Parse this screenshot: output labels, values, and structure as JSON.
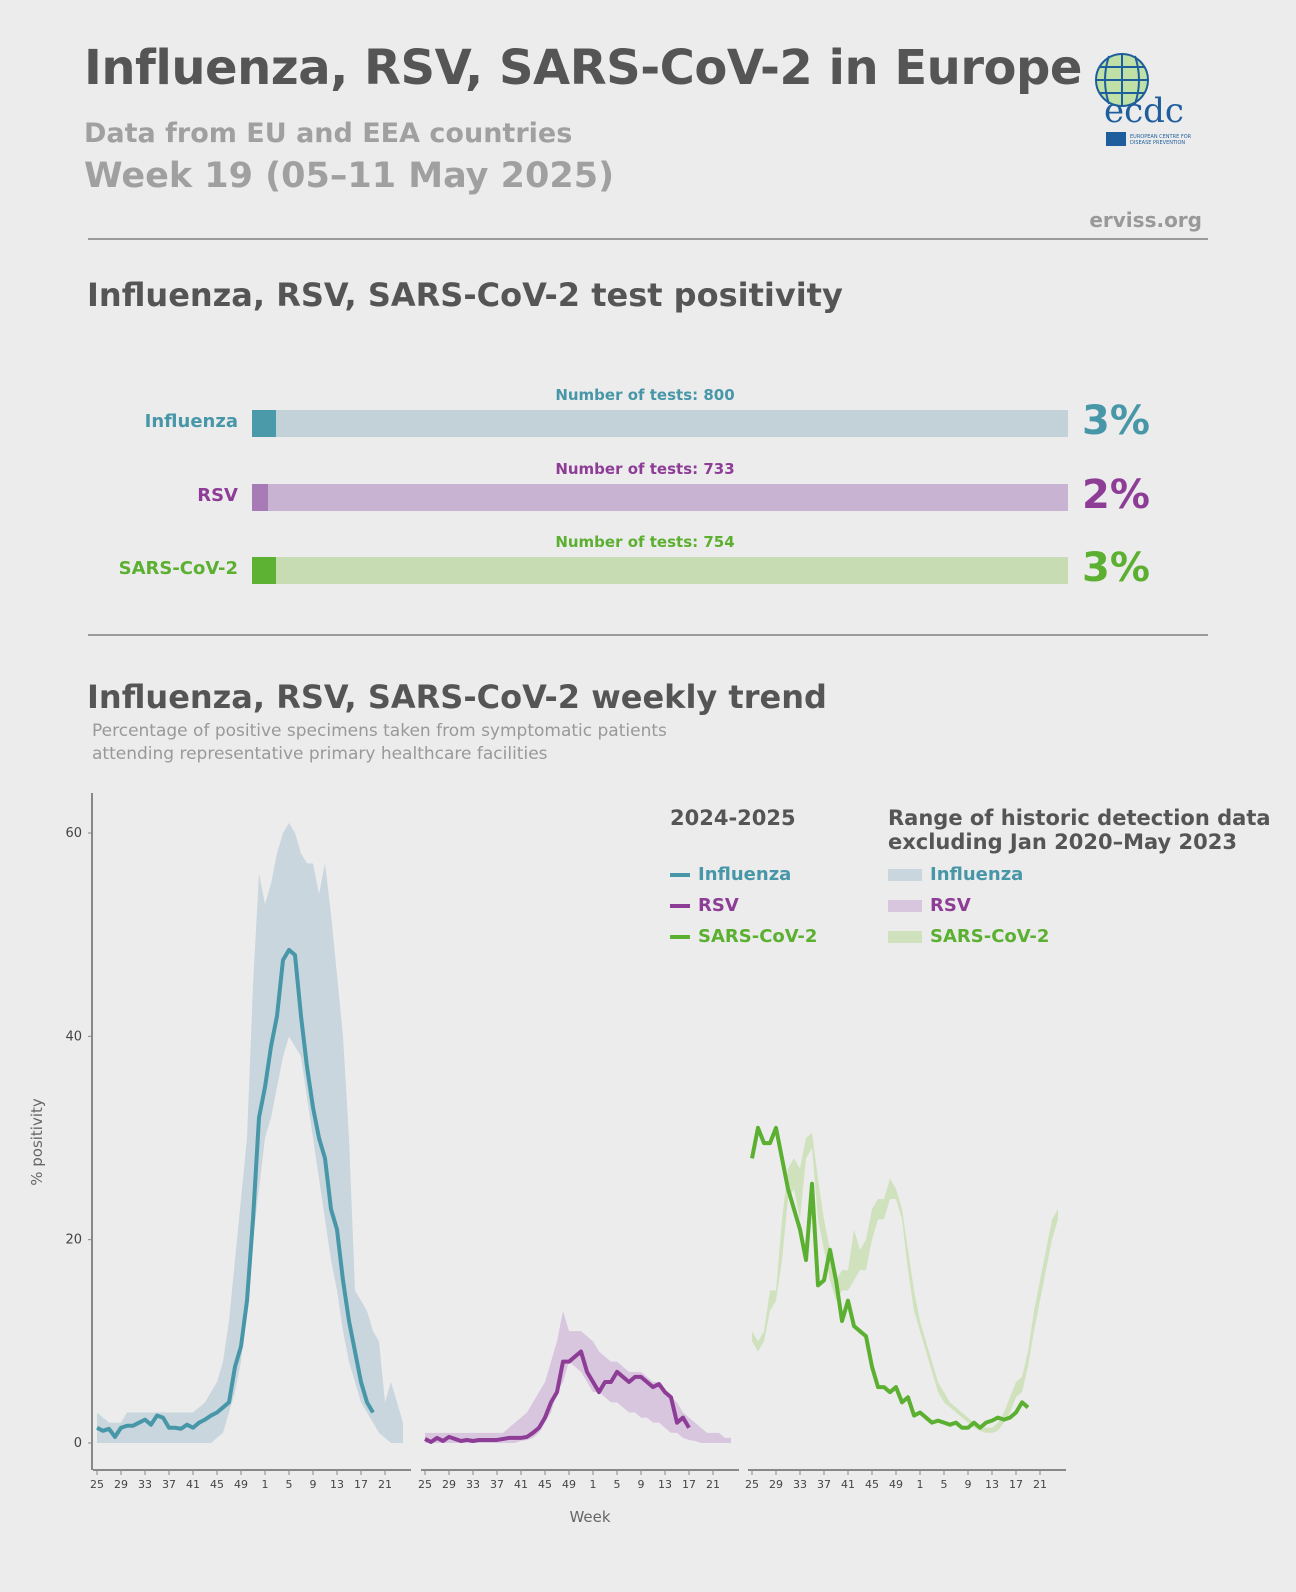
{
  "header": {
    "title": "Influenza, RSV, SARS-CoV-2 in Europe",
    "subtitle": "Data from EU and EEA countries",
    "week": "Week 19 (05–11 May 2025)",
    "site": "erviss.org",
    "logo_text": "ecdc",
    "logo_caption": "EUROPEAN CENTRE FOR DISEASE PREVENTION AND CONTROL"
  },
  "colors": {
    "influenza": "#4797a8",
    "rsv": "#8e3d97",
    "sars": "#5cb031",
    "influenza_band": "#c9d6de",
    "rsv_band": "#d8c6df",
    "sars_band": "#cfe2bd"
  },
  "positivity": {
    "title": "Influenza, RSV, SARS-CoV-2 test positivity",
    "rows": [
      {
        "label": "Influenza",
        "tests": "Number of tests: 800",
        "percent_label": "3%",
        "percent": 3
      },
      {
        "label": "RSV",
        "tests": "Number of tests: 733",
        "percent_label": "2%",
        "percent": 2
      },
      {
        "label": "SARS-CoV-2",
        "tests": "Number of tests: 754",
        "percent_label": "3%",
        "percent": 3
      }
    ]
  },
  "trend": {
    "title": "Influenza, RSV, SARS-CoV-2 weekly trend",
    "subtitle_1": "Percentage of positive specimens taken from symptomatic patients",
    "subtitle_2": "attending representative primary healthcare facilities"
  },
  "legend": {
    "season_title": "2024-2025",
    "range_title_1": "Range of historic detection data",
    "range_title_2": "excluding Jan 2020–May 2023",
    "items": [
      "Influenza",
      "RSV",
      "SARS-CoV-2"
    ]
  },
  "chart_data": {
    "type": "line",
    "xlabel": "Week",
    "ylabel": "% positivity",
    "ylim": [
      0,
      64
    ],
    "yticks": [
      0,
      20,
      40,
      60
    ],
    "weeks": [
      25,
      26,
      27,
      28,
      29,
      30,
      31,
      32,
      33,
      34,
      35,
      36,
      37,
      38,
      39,
      40,
      41,
      42,
      43,
      44,
      45,
      46,
      47,
      48,
      49,
      50,
      51,
      52,
      1,
      2,
      3,
      4,
      5,
      6,
      7,
      8,
      9,
      10,
      11,
      12,
      13,
      14,
      15,
      16,
      17,
      18,
      19,
      20,
      21,
      22,
      23,
      24
    ],
    "xtick_labels": [
      "25",
      "29",
      "33",
      "37",
      "41",
      "45",
      "49",
      "1",
      "5",
      "9",
      "13",
      "17",
      "21"
    ],
    "panels": [
      {
        "name": "Influenza",
        "line": [
          1.5,
          1.2,
          1.4,
          0.6,
          1.5,
          1.7,
          1.7,
          2.0,
          2.3,
          1.8,
          2.7,
          2.5,
          1.5,
          1.5,
          1.4,
          1.8,
          1.5,
          2.0,
          2.3,
          2.7,
          3.0,
          3.5,
          4.0,
          7.5,
          9.5,
          14,
          22,
          32,
          35,
          39,
          42,
          47.5,
          48.5,
          48,
          42,
          37,
          33,
          30,
          28,
          23,
          21,
          16,
          12,
          9,
          6,
          4,
          3
        ],
        "range_low": [
          0,
          0,
          0,
          0,
          0,
          0,
          0,
          0,
          0,
          0,
          0,
          0,
          0,
          0,
          0,
          0,
          0,
          0,
          0,
          0,
          0.5,
          1,
          3,
          5,
          8,
          14,
          20,
          25,
          30,
          32,
          35,
          38,
          40,
          39,
          38,
          34,
          30,
          26,
          22,
          18,
          15,
          11,
          8,
          6,
          4,
          3,
          2,
          1,
          0.5,
          0,
          0,
          0
        ],
        "range_high": [
          3,
          2.5,
          2,
          2,
          2,
          3,
          3,
          3,
          3,
          3,
          3,
          3,
          3,
          3,
          3,
          3,
          3,
          3.5,
          4,
          5,
          6,
          8,
          12,
          18,
          24,
          30,
          45,
          56,
          53,
          55,
          58,
          60,
          61,
          60,
          58,
          57,
          57,
          54,
          57,
          52,
          46,
          40,
          30,
          15,
          14,
          13,
          11,
          10,
          4,
          6,
          4,
          2
        ]
      },
      {
        "name": "RSV",
        "line": [
          0.4,
          0.1,
          0.5,
          0.2,
          0.6,
          0.4,
          0.2,
          0.3,
          0.2,
          0.3,
          0.3,
          0.3,
          0.3,
          0.4,
          0.5,
          0.5,
          0.5,
          0.6,
          1.0,
          1.5,
          2.5,
          4,
          5,
          8,
          8,
          8.5,
          9,
          7,
          6,
          5,
          6,
          6,
          7,
          6.5,
          6,
          6.5,
          6.5,
          6,
          5.5,
          5.8,
          5,
          4.5,
          2,
          2.5,
          1.5
        ],
        "range_low": [
          0,
          0,
          0,
          0,
          0,
          0,
          0,
          0,
          0,
          0,
          0,
          0,
          0,
          0,
          0,
          0,
          0.2,
          0.3,
          0.5,
          1,
          2,
          3,
          5,
          6,
          8,
          7.5,
          7,
          6,
          5,
          5,
          4.5,
          4,
          4,
          3.5,
          3,
          3,
          2.5,
          2.5,
          2,
          2,
          1.5,
          1,
          1,
          0.5,
          0.3,
          0.2,
          0,
          0,
          0,
          0,
          0,
          0
        ],
        "range_high": [
          1,
          1,
          1,
          1,
          1,
          1,
          1,
          1,
          1,
          1,
          1,
          1,
          1,
          1,
          1.5,
          2,
          2.5,
          3,
          4,
          5,
          6,
          8,
          10,
          13,
          11,
          11,
          11,
          10.5,
          10,
          9,
          8.5,
          8,
          8,
          7.5,
          7,
          7,
          7,
          6.5,
          6,
          6,
          5,
          4.5,
          4,
          3,
          2.5,
          2,
          1.5,
          1,
          1,
          1,
          0.5,
          0.5
        ]
      },
      {
        "name": "SARS-CoV-2",
        "line": [
          28,
          31,
          29.5,
          29.5,
          31,
          28,
          25,
          23,
          21,
          18,
          25.5,
          15.5,
          16,
          19,
          16,
          12,
          14,
          11.5,
          11,
          10.5,
          7.5,
          5.5,
          5.5,
          5,
          5.5,
          4,
          4.5,
          2.7,
          3,
          2.5,
          2,
          2.2,
          2,
          1.8,
          2,
          1.5,
          1.5,
          2,
          1.5,
          2,
          2.2,
          2.5,
          2.3,
          2.5,
          3,
          4,
          3.5
        ],
        "range_low": [
          10,
          9,
          10,
          13,
          14,
          18,
          24,
          25,
          22,
          28,
          29,
          22,
          19,
          16,
          14,
          15,
          15,
          16,
          17,
          17,
          20,
          22,
          22,
          24,
          24,
          22,
          17,
          13,
          11,
          9,
          7,
          5,
          4,
          3.5,
          3,
          2.5,
          2,
          1.5,
          1.2,
          1,
          1,
          1.2,
          2,
          3,
          4.5,
          5,
          7.5,
          11,
          14,
          17,
          20,
          22
        ],
        "range_high": [
          11,
          10,
          11,
          15,
          15,
          22,
          27,
          28,
          27,
          30,
          30.5,
          26,
          22,
          19,
          16,
          17,
          17,
          21,
          19,
          20,
          23,
          24,
          24,
          26,
          25,
          23,
          19,
          15,
          12,
          10,
          8,
          6,
          5,
          4,
          3.5,
          3,
          2.5,
          2,
          1.7,
          1.5,
          1.5,
          2,
          3,
          4.5,
          6,
          6.5,
          9,
          13,
          16,
          19,
          22,
          23
        ]
      }
    ]
  }
}
